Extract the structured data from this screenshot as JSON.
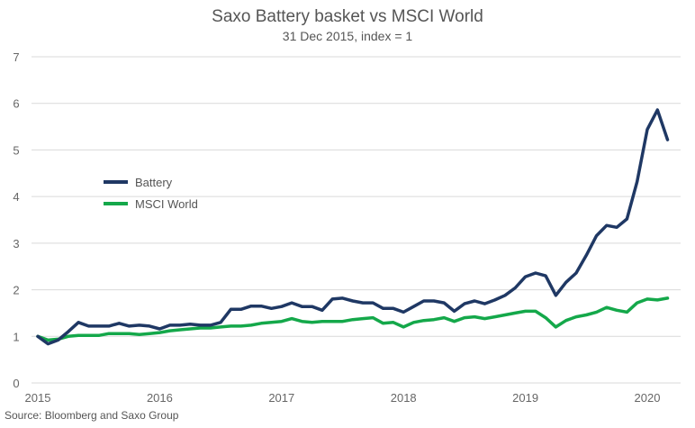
{
  "chart_data": {
    "type": "line",
    "title": "Saxo Battery basket vs MSCI World",
    "subtitle": "31 Dec 2015, index = 1",
    "source": "Source: Bloomberg and Saxo Group",
    "xlabel": "",
    "ylabel": "",
    "x_start": 2015.0,
    "x_step_years": 0.08333,
    "xlim": [
      2015,
      2020.3
    ],
    "ylim": [
      0,
      7
    ],
    "x_ticks": [
      "2015",
      "2016",
      "2017",
      "2018",
      "2019",
      "2020"
    ],
    "y_ticks": [
      "0",
      "1",
      "2",
      "3",
      "4",
      "5",
      "6",
      "7"
    ],
    "grid": true,
    "legend_position": "center-left",
    "series": [
      {
        "name": "Battery",
        "color": "#1f3864",
        "values": [
          1.0,
          0.84,
          0.92,
          1.1,
          1.3,
          1.22,
          1.22,
          1.22,
          1.28,
          1.22,
          1.24,
          1.22,
          1.16,
          1.24,
          1.24,
          1.26,
          1.24,
          1.24,
          1.3,
          1.58,
          1.58,
          1.65,
          1.65,
          1.6,
          1.64,
          1.72,
          1.64,
          1.64,
          1.56,
          1.8,
          1.82,
          1.76,
          1.72,
          1.72,
          1.6,
          1.6,
          1.52,
          1.64,
          1.76,
          1.76,
          1.72,
          1.54,
          1.7,
          1.76,
          1.7,
          1.78,
          1.88,
          2.04,
          2.28,
          2.36,
          2.3,
          1.88,
          2.16,
          2.36,
          2.74,
          3.16,
          3.38,
          3.34,
          3.52,
          4.32,
          5.44,
          5.86,
          5.22
        ]
      },
      {
        "name": "MSCI World",
        "color": "#14a84a",
        "values": [
          1.0,
          0.92,
          0.94,
          1.0,
          1.02,
          1.02,
          1.02,
          1.06,
          1.06,
          1.06,
          1.04,
          1.06,
          1.08,
          1.12,
          1.14,
          1.16,
          1.18,
          1.18,
          1.2,
          1.22,
          1.22,
          1.24,
          1.28,
          1.3,
          1.32,
          1.38,
          1.32,
          1.3,
          1.32,
          1.32,
          1.32,
          1.36,
          1.38,
          1.4,
          1.28,
          1.3,
          1.2,
          1.3,
          1.34,
          1.36,
          1.4,
          1.32,
          1.4,
          1.42,
          1.38,
          1.42,
          1.46,
          1.5,
          1.54,
          1.54,
          1.4,
          1.2,
          1.34,
          1.42,
          1.46,
          1.52,
          1.62,
          1.56,
          1.52,
          1.72,
          1.8,
          1.78,
          1.82
        ]
      }
    ]
  }
}
